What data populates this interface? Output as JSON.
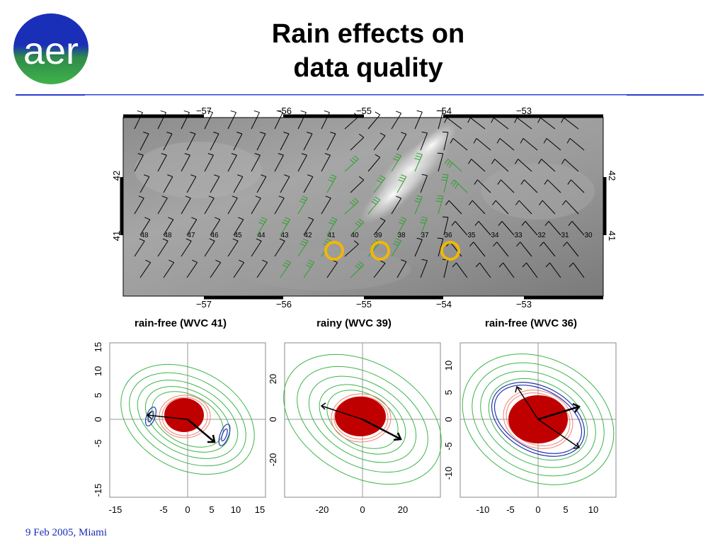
{
  "slide": {
    "logo_text": "aer",
    "title_line1": "Rain effects on",
    "title_line2": "data quality",
    "footer": "9 Feb 2005, Miami"
  },
  "colors": {
    "rule": "#2b3bd0",
    "footer": "#1a2bb5",
    "rain_flag": "#2ca02c",
    "wind_barb": "#000000",
    "marker": "#f2b705",
    "core": "#c00000"
  },
  "map": {
    "top_ticks": [
      "−57",
      "−56",
      "−55",
      "−54",
      "−53"
    ],
    "bottom_ticks": [
      "−57",
      "−56",
      "−55",
      "−54",
      "−53"
    ],
    "left_ticks": [
      "42",
      "41"
    ],
    "right_ticks": [
      "42",
      "41"
    ],
    "wvc_labels": [
      "48",
      "48",
      "47",
      "46",
      "45",
      "44",
      "43",
      "42",
      "41",
      "40",
      "39",
      "38",
      "37",
      "36",
      "35",
      "34",
      "33",
      "32",
      "31",
      "30"
    ],
    "markers": [
      "WVC 41",
      "WVC 39",
      "WVC 36"
    ]
  },
  "panels": [
    {
      "title": "rain-free (WVC 41)",
      "x_ticks": [
        "-15",
        "-5",
        "0",
        "5",
        "10",
        "15"
      ],
      "y_ticks": [
        "15",
        "10",
        "5",
        "0",
        "-5",
        "-15"
      ]
    },
    {
      "title": "rainy (WVC 39)",
      "x_ticks": [
        "-20",
        "0",
        "20"
      ],
      "y_ticks": [
        "20",
        "0",
        "-20"
      ]
    },
    {
      "title": "rain-free (WVC 36)",
      "x_ticks": [
        "-10",
        "-5",
        "0",
        "5",
        "10"
      ],
      "y_ticks": [
        "10",
        "5",
        "0",
        "-5",
        "-10"
      ]
    }
  ]
}
